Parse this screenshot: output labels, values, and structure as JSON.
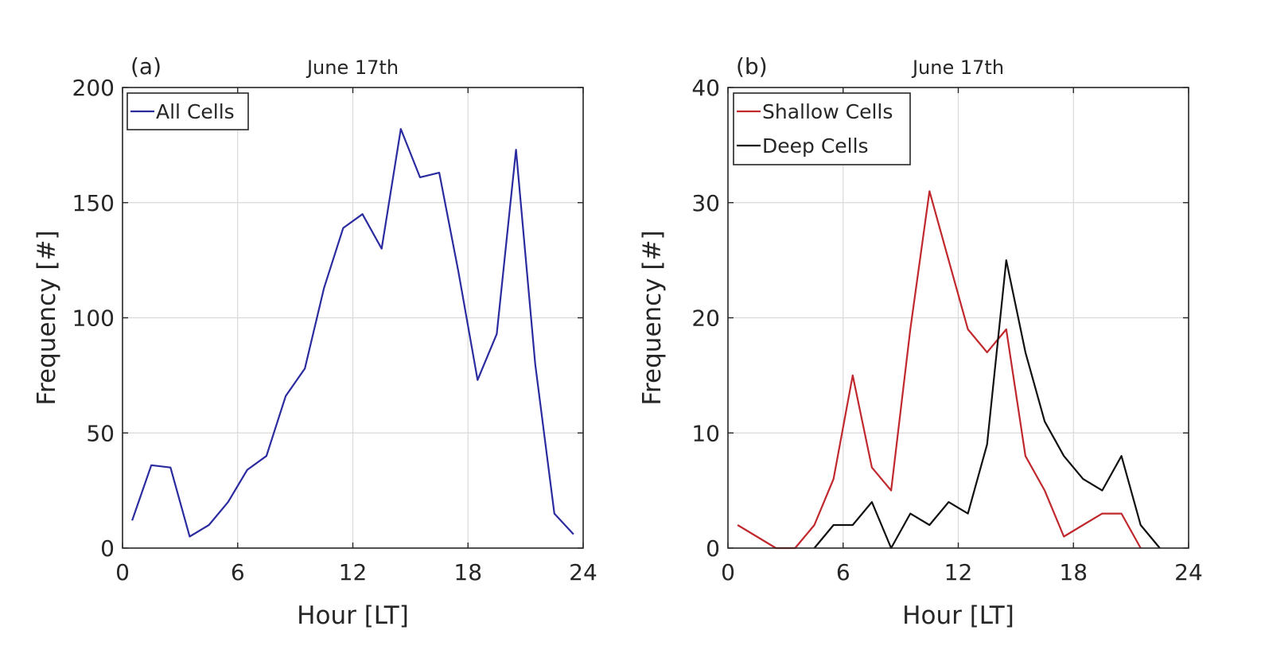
{
  "chart_data": [
    {
      "type": "line",
      "panel_label": "(a)",
      "title": "June 17th",
      "xlabel": "Hour [LT]",
      "ylabel": "Frequency [#]",
      "xlim": [
        0,
        24
      ],
      "ylim": [
        0,
        200
      ],
      "xticks": [
        0,
        6,
        12,
        18,
        24
      ],
      "yticks": [
        0,
        50,
        100,
        150,
        200
      ],
      "x_tick_labels": [
        "0",
        "6",
        "12",
        "18",
        "24"
      ],
      "y_tick_labels": [
        "0",
        "50",
        "100",
        "150",
        "200"
      ],
      "grid": true,
      "legend_position": "top-left",
      "series": [
        {
          "name": "All Cells",
          "color": "#2b2ba0",
          "x": [
            0.5,
            1.5,
            2.5,
            3.5,
            4.5,
            5.5,
            6.5,
            7.5,
            8.5,
            9.5,
            10.5,
            11.5,
            12.5,
            13.5,
            14.5,
            15.5,
            16.5,
            17.5,
            18.5,
            19.5,
            20.5,
            21.5,
            22.5,
            23.5
          ],
          "y": [
            12,
            36,
            35,
            5,
            10,
            20,
            34,
            40,
            66,
            78,
            113,
            139,
            145,
            130,
            182,
            161,
            163,
            120,
            73,
            93,
            173,
            80,
            15,
            6
          ]
        }
      ]
    },
    {
      "type": "line",
      "panel_label": "(b)",
      "title": "June 17th",
      "xlabel": "Hour [LT]",
      "ylabel": "Frequency [#]",
      "xlim": [
        0,
        24
      ],
      "ylim": [
        0,
        40
      ],
      "xticks": [
        0,
        6,
        12,
        18,
        24
      ],
      "yticks": [
        0,
        10,
        20,
        30,
        40
      ],
      "x_tick_labels": [
        "0",
        "6",
        "12",
        "18",
        "24"
      ],
      "y_tick_labels": [
        "0",
        "10",
        "20",
        "30",
        "40"
      ],
      "grid": true,
      "legend_position": "top-left",
      "series": [
        {
          "name": "Shallow Cells",
          "color": "#c0282d",
          "x": [
            0.5,
            1.5,
            2.5,
            3.5,
            4.5,
            5.5,
            6.5,
            7.5,
            8.5,
            9.5,
            10.5,
            11.5,
            12.5,
            13.5,
            14.5,
            15.5,
            16.5,
            17.5,
            18.5,
            19.5,
            20.5,
            21.5
          ],
          "y": [
            2,
            1,
            0,
            0,
            2,
            6,
            15,
            7,
            5,
            19,
            31,
            25,
            19,
            17,
            19,
            8,
            5,
            1,
            2,
            3,
            3,
            0
          ]
        },
        {
          "name": "Deep Cells",
          "color": "#111111",
          "x": [
            4.5,
            5.5,
            6.5,
            7.5,
            8.5,
            9.5,
            10.5,
            11.5,
            12.5,
            13.5,
            14.5,
            15.5,
            16.5,
            17.5,
            18.5,
            19.5,
            20.5,
            21.5,
            22.5
          ],
          "y": [
            0,
            2,
            2,
            4,
            0,
            3,
            2,
            4,
            3,
            9,
            25,
            17,
            11,
            8,
            6,
            5,
            8,
            2,
            0
          ]
        }
      ]
    }
  ]
}
